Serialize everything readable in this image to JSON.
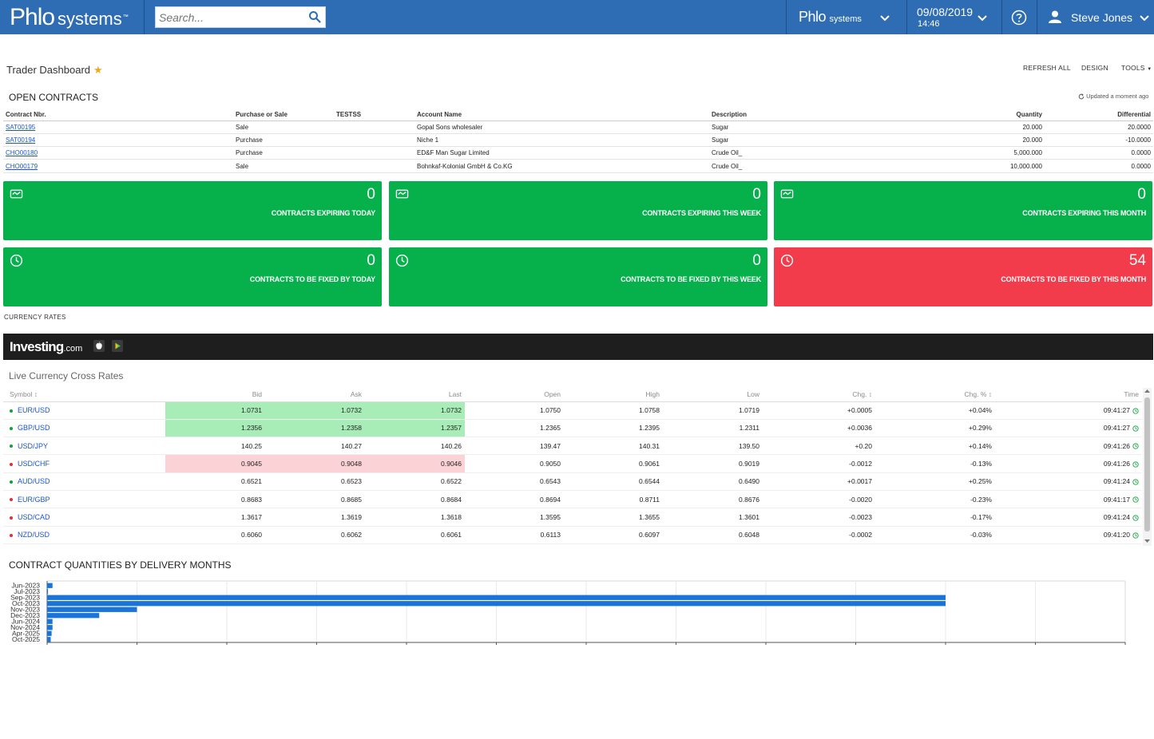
{
  "header": {
    "logo_main": "Phlo",
    "logo_sys": "systems",
    "logo_tm": "™",
    "search_placeholder": "Search...",
    "company_main": "Phlo",
    "company_sys": "systems",
    "date": "09/08/2019",
    "time": "14:46",
    "user_name": "Steve Jones"
  },
  "page": {
    "title": "Trader Dashboard",
    "toolbar": {
      "refresh": "REFRESH ALL",
      "design": "DESIGN",
      "tools": "TOOLS"
    },
    "updated": "Updated a moment ago"
  },
  "open_contracts": {
    "title": "OPEN CONTRACTS",
    "columns": [
      "Contract Nbr.",
      "Purchase or Sale",
      "TESTSS",
      "Account Name",
      "Description",
      "Quantity",
      "Differential"
    ],
    "rows": [
      [
        "SAT00195",
        "Sale",
        "",
        "Gopal Sons wholesaler",
        "Sugar",
        "20.000",
        "20.0000"
      ],
      [
        "SAT00194",
        "Purchase",
        "",
        "Niche 1",
        "Sugar",
        "20.000",
        "-10.0000"
      ],
      [
        "CHO00180",
        "Purchase",
        "",
        "ED&F Man Sugar Limited",
        "Crude Oil_",
        "5,000.000",
        "0.0000"
      ],
      [
        "CHO00179",
        "Sale",
        "",
        "Bohnkaf-Kolonial GmbH & Co.KG",
        "Crude Oil_",
        "10,000.000",
        "0.0000"
      ]
    ]
  },
  "tiles": [
    {
      "value": "0",
      "caption": "CONTRACTS EXPIRING TODAY",
      "icon": "handshake-icon",
      "color": "#06b14c"
    },
    {
      "value": "0",
      "caption": "CONTRACTS EXPIRING THIS WEEK",
      "icon": "handshake-icon",
      "color": "#06b14c"
    },
    {
      "value": "0",
      "caption": "CONTRACTS EXPIRING THIS MONTH",
      "icon": "handshake-icon",
      "color": "#06b14c"
    },
    {
      "value": "0",
      "caption": "CONTRACTS TO BE FIXED BY TODAY",
      "icon": "clock-icon",
      "color": "#06b14c"
    },
    {
      "value": "0",
      "caption": "CONTRACTS TO BE FIXED BY THIS WEEK",
      "icon": "clock-icon",
      "color": "#06b14c"
    },
    {
      "value": "54",
      "caption": "CONTRACTS TO BE FIXED BY THIS MONTH",
      "icon": "clock-icon",
      "color": "#f23b4b"
    }
  ],
  "currency": {
    "section_label": "CURRENCY RATES",
    "widget_logo": "Investing",
    "widget_logo_suffix": ".com",
    "widget_title": "Live Currency Cross Rates",
    "columns": [
      "Symbol ↕",
      "Bid",
      "Ask",
      "Last",
      "Open",
      "High",
      "Low",
      "Chg. ↕",
      "Chg. % ↕",
      "Time"
    ],
    "rows": [
      {
        "symbol": "EUR/USD",
        "dir": "up",
        "hl": "g",
        "bid": "1.0731",
        "ask": "1.0732",
        "last": "1.0732",
        "open": "1.0750",
        "high": "1.0758",
        "low": "1.0719",
        "chg": "+0.0005",
        "chgp": "+0.04%",
        "time": "09:41:27"
      },
      {
        "symbol": "GBP/USD",
        "dir": "up",
        "hl": "g",
        "bid": "1.2356",
        "ask": "1.2358",
        "last": "1.2357",
        "open": "1.2365",
        "high": "1.2395",
        "low": "1.2311",
        "chg": "+0.0036",
        "chgp": "+0.29%",
        "time": "09:41:27"
      },
      {
        "symbol": "USD/JPY",
        "dir": "up",
        "hl": "",
        "bid": "140.25",
        "ask": "140.27",
        "last": "140.26",
        "open": "139.47",
        "high": "140.31",
        "low": "139.50",
        "chg": "+0.20",
        "chgp": "+0.14%",
        "time": "09:41:26"
      },
      {
        "symbol": "USD/CHF",
        "dir": "down",
        "hl": "r",
        "bid": "0.9045",
        "ask": "0.9048",
        "last": "0.9046",
        "open": "0.9050",
        "high": "0.9061",
        "low": "0.9019",
        "chg": "-0.0012",
        "chgp": "-0.13%",
        "time": "09:41:26"
      },
      {
        "symbol": "AUD/USD",
        "dir": "up",
        "hl": "",
        "bid": "0.6521",
        "ask": "0.6523",
        "last": "0.6522",
        "open": "0.6543",
        "high": "0.6544",
        "low": "0.6490",
        "chg": "+0.0017",
        "chgp": "+0.25%",
        "time": "09:41:24"
      },
      {
        "symbol": "EUR/GBP",
        "dir": "down",
        "hl": "",
        "bid": "0.8683",
        "ask": "0.8685",
        "last": "0.8684",
        "open": "0.8694",
        "high": "0.8711",
        "low": "0.8676",
        "chg": "-0.0020",
        "chgp": "-0.23%",
        "time": "09:41:17"
      },
      {
        "symbol": "USD/CAD",
        "dir": "down",
        "hl": "",
        "bid": "1.3617",
        "ask": "1.3619",
        "last": "1.3618",
        "open": "1.3595",
        "high": "1.3655",
        "low": "1.3601",
        "chg": "-0.0023",
        "chgp": "-0.17%",
        "time": "09:41:24"
      },
      {
        "symbol": "NZD/USD",
        "dir": "down",
        "hl": "",
        "bid": "0.6060",
        "ask": "0.6062",
        "last": "0.6061",
        "open": "0.6113",
        "high": "0.6097",
        "low": "0.6048",
        "chg": "-0.0002",
        "chgp": "-0.03%",
        "time": "09:41:20"
      }
    ]
  },
  "chart_title": "CONTRACT QUANTITIES BY DELIVERY MONTHS",
  "chart_data": {
    "type": "bar",
    "orientation": "horizontal",
    "title": "CONTRACT QUANTITIES BY DELIVERY MONTHS",
    "categories": [
      "Jun-2023",
      "Jul-2023",
      "Sep-2023",
      "Oct-2023",
      "Nov-2023",
      "Dec-2023",
      "Jun-2024",
      "Nov-2024",
      "Apr-2025",
      "Oct-2025"
    ],
    "values": [
      600,
      100,
      100000,
      100000,
      10000,
      5800,
      600,
      600,
      500,
      400
    ],
    "xlim": [
      0,
      120000
    ],
    "grid": true,
    "color": "#1a73d9"
  }
}
